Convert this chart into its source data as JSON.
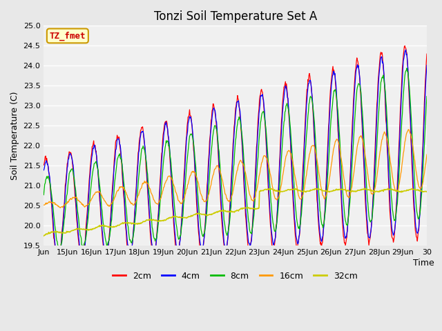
{
  "title": "Tonzi Soil Temperature Set A",
  "xlabel": "Time",
  "ylabel": "Soil Temperature (C)",
  "annotation_text": "TZ_fmet",
  "annotation_bg": "#ffffcc",
  "annotation_border": "#cc9900",
  "annotation_text_color": "#cc0000",
  "ylim": [
    19.5,
    25.0
  ],
  "bg_color": "#e8e8e8",
  "plot_bg": "#f0f0f0",
  "line_colors": {
    "2cm": "#ff0000",
    "4cm": "#0000ff",
    "8cm": "#00bb00",
    "16cm": "#ff9900",
    "32cm": "#cccc00"
  },
  "xtick_labels": [
    "Jun",
    "15Jun",
    "16Jun",
    "17Jun",
    "18Jun",
    "19Jun",
    "20Jun",
    "21Jun",
    "22Jun",
    "23Jun",
    "24Jun",
    "25Jun",
    "26Jun",
    "27Jun",
    "28Jun",
    "29Jun",
    "30"
  ],
  "grid_color": "#ffffff",
  "title_fontsize": 12,
  "axis_fontsize": 9,
  "tick_fontsize": 8
}
